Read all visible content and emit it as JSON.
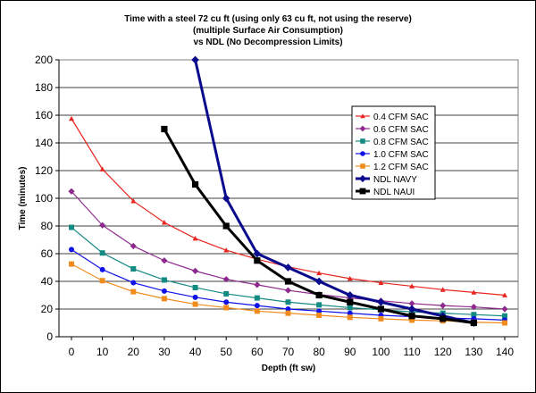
{
  "chart_data": {
    "type": "line",
    "title": "Time with a steel 72 cu ft (using only 63 cu ft, not using the reserve)",
    "subtitle": [
      "(multiple Surface Air Consumption)",
      "vs NDL (No Decompression Limits)"
    ],
    "xlabel": "Depth (ft sw)",
    "ylabel": "Time (minutes)",
    "x": [
      0,
      10,
      20,
      30,
      40,
      50,
      60,
      70,
      80,
      90,
      100,
      110,
      120,
      130,
      140
    ],
    "xlim": [
      0,
      140
    ],
    "ylim": [
      0,
      200
    ],
    "yticks": [
      0,
      20,
      40,
      60,
      80,
      100,
      120,
      140,
      160,
      180,
      200
    ],
    "grid": "horizontal",
    "legend_position": "right",
    "series": [
      {
        "name": "0.4 CFM SAC",
        "color": "#e8251e",
        "marker": "triangle",
        "x": [
          0,
          10,
          20,
          30,
          40,
          50,
          60,
          70,
          80,
          90,
          100,
          110,
          120,
          130,
          140
        ],
        "values": [
          157.5,
          121,
          98,
          82.5,
          71,
          62.5,
          56,
          50.5,
          46,
          42,
          39,
          36.5,
          34,
          32,
          30
        ]
      },
      {
        "name": "0.6 CFM SAC",
        "color": "#8e2a8e",
        "marker": "diamond",
        "x": [
          0,
          10,
          20,
          30,
          40,
          50,
          60,
          70,
          80,
          90,
          100,
          110,
          120,
          130,
          140
        ],
        "values": [
          105,
          80.5,
          65.5,
          55,
          47.5,
          41.5,
          37.5,
          33.5,
          30.5,
          28,
          26,
          24,
          22.5,
          21.5,
          20
        ]
      },
      {
        "name": "0.8 CFM SAC",
        "color": "#138a82",
        "marker": "square",
        "x": [
          0,
          10,
          20,
          30,
          40,
          50,
          60,
          70,
          80,
          90,
          100,
          110,
          120,
          130,
          140
        ],
        "values": [
          79,
          60.5,
          49,
          41,
          35.5,
          31,
          28,
          25,
          23,
          21,
          19.5,
          18,
          17,
          16,
          15
        ]
      },
      {
        "name": "1.0 CFM SAC",
        "color": "#1010e8",
        "marker": "circle",
        "x": [
          0,
          10,
          20,
          30,
          40,
          50,
          60,
          70,
          80,
          90,
          100,
          110,
          120,
          130,
          140
        ],
        "values": [
          63,
          48.5,
          39,
          33,
          28.5,
          25,
          22.5,
          20,
          18.5,
          17,
          15.5,
          14.5,
          13.5,
          13,
          12
        ]
      },
      {
        "name": "1.2 CFM SAC",
        "color": "#f08c1e",
        "marker": "square",
        "x": [
          0,
          10,
          20,
          30,
          40,
          50,
          60,
          70,
          80,
          90,
          100,
          110,
          120,
          130,
          140
        ],
        "values": [
          52.5,
          40.5,
          32.5,
          27.5,
          23.5,
          21,
          18.5,
          17,
          15.5,
          14,
          13,
          12,
          11.5,
          10.5,
          10
        ]
      },
      {
        "name": "NDL NAVY",
        "color": "#0a0a8c",
        "marker": "diamond",
        "bold": true,
        "x": [
          40,
          50,
          60,
          70,
          80,
          90,
          100,
          110,
          120,
          130
        ],
        "values": [
          200,
          100,
          60,
          50,
          40,
          30,
          25,
          20,
          15,
          10
        ]
      },
      {
        "name": "NDL NAUI",
        "color": "#000000",
        "marker": "square",
        "bold": true,
        "x": [
          30,
          40,
          50,
          60,
          70,
          80,
          90,
          100,
          110,
          120,
          130
        ],
        "values": [
          150,
          110,
          80,
          55,
          40,
          30,
          25,
          20,
          15,
          13,
          10
        ]
      }
    ]
  }
}
